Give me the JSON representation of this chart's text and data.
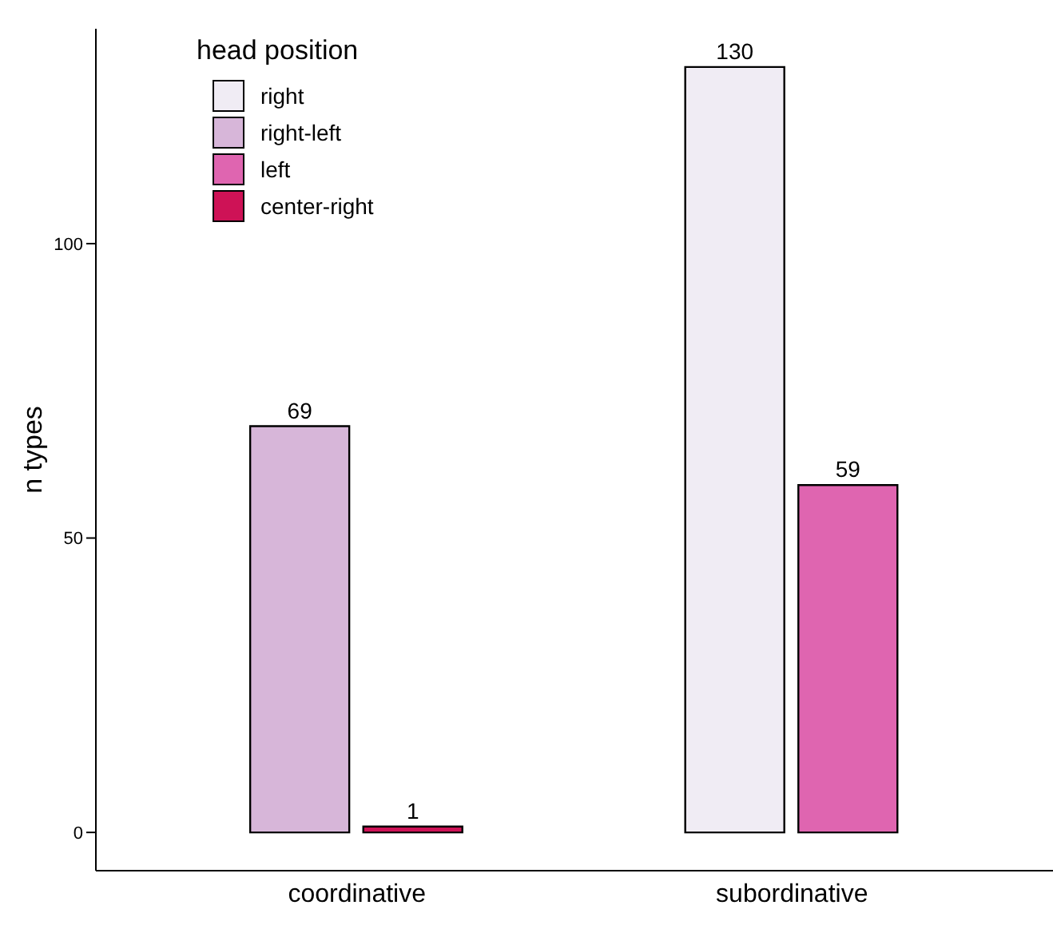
{
  "chart_data": {
    "type": "bar",
    "categories": [
      "coordinative",
      "subordinative"
    ],
    "ylabel": "n types",
    "legend_title": "head position",
    "legend": "top left",
    "data_labels": true,
    "ylim": [
      -6.5,
      136.5
    ],
    "yticks": [
      0,
      50,
      100
    ],
    "grid": false,
    "series": [
      {
        "name": "right",
        "color": "#f0ecf4",
        "values": [
          null,
          130
        ]
      },
      {
        "name": "right-left",
        "color": "#d7b6d9",
        "values": [
          69,
          null
        ]
      },
      {
        "name": "left",
        "color": "#df65b0",
        "values": [
          null,
          59
        ]
      },
      {
        "name": "center-right",
        "color": "#ce1256",
        "values": [
          1,
          null
        ]
      }
    ]
  }
}
